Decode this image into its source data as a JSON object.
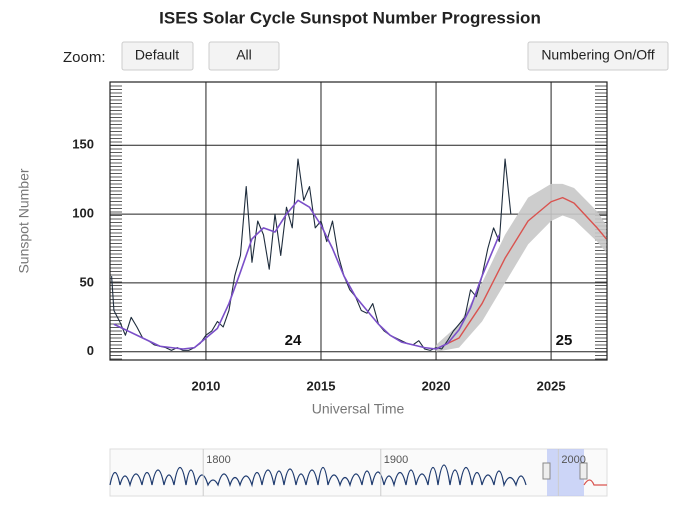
{
  "chart_data": {
    "type": "line",
    "title": "ISES Solar Cycle Sunspot Number Progression",
    "zoom_label": "Zoom:",
    "buttons": [
      "Default",
      "All",
      "Numbering On/Off"
    ],
    "y_label": "Sunspot Number",
    "x_label": "Universal Time",
    "annotations": [
      "24",
      "25"
    ],
    "xlim": [
      2005.83,
      2027.43
    ],
    "ylim": [
      -6,
      196
    ],
    "xticks": [
      2010,
      2015,
      2020,
      2025
    ],
    "yticks": [
      0,
      50,
      100,
      150
    ],
    "grid": true,
    "monthly": {
      "color": "#1f2d3d",
      "x": [
        2005.9,
        2006.0,
        2006.25,
        2006.5,
        2006.75,
        2007.0,
        2007.25,
        2007.5,
        2007.75,
        2008.0,
        2008.25,
        2008.5,
        2008.75,
        2009.0,
        2009.25,
        2009.5,
        2009.75,
        2010.0,
        2010.25,
        2010.5,
        2010.75,
        2011.0,
        2011.25,
        2011.5,
        2011.75,
        2012.0,
        2012.25,
        2012.5,
        2012.75,
        2013.0,
        2013.25,
        2013.5,
        2013.75,
        2014.0,
        2014.25,
        2014.5,
        2014.75,
        2015.0,
        2015.25,
        2015.5,
        2015.75,
        2016.0,
        2016.25,
        2016.5,
        2016.75,
        2017.0,
        2017.25,
        2017.5,
        2017.75,
        2018.0,
        2018.25,
        2018.5,
        2018.75,
        2019.0,
        2019.25,
        2019.5,
        2019.75,
        2020.0,
        2020.25,
        2020.5,
        2020.75,
        2021.0,
        2021.25,
        2021.5,
        2021.75,
        2022.0,
        2022.25,
        2022.5,
        2022.75,
        2023.0,
        2023.25
      ],
      "values": [
        55,
        30,
        22,
        12,
        25,
        18,
        10,
        8,
        5,
        4,
        3,
        1,
        3,
        1,
        1,
        3,
        6,
        12,
        15,
        22,
        18,
        30,
        55,
        70,
        120,
        65,
        95,
        85,
        60,
        100,
        70,
        105,
        90,
        140,
        110,
        120,
        90,
        95,
        80,
        95,
        70,
        55,
        45,
        40,
        30,
        28,
        35,
        20,
        15,
        12,
        10,
        8,
        6,
        5,
        8,
        2,
        1,
        3,
        2,
        8,
        15,
        20,
        25,
        45,
        40,
        55,
        75,
        90,
        80,
        140,
        100
      ]
    },
    "smoothed": {
      "color": "#7b4fc9",
      "x": [
        2006.0,
        2006.5,
        2007.0,
        2007.5,
        2008.0,
        2008.5,
        2009.0,
        2009.5,
        2010.0,
        2010.5,
        2011.0,
        2011.5,
        2012.0,
        2012.5,
        2013.0,
        2013.5,
        2014.0,
        2014.5,
        2015.0,
        2015.5,
        2016.0,
        2016.5,
        2017.0,
        2017.5,
        2018.0,
        2018.5,
        2019.0,
        2019.5,
        2020.0,
        2020.5,
        2021.0,
        2021.5,
        2022.0,
        2022.5,
        2022.75
      ],
      "values": [
        20,
        16,
        12,
        8,
        4,
        3,
        2,
        3,
        10,
        17,
        35,
        58,
        82,
        90,
        87,
        100,
        110,
        105,
        92,
        75,
        55,
        40,
        30,
        20,
        12,
        7,
        5,
        3,
        2,
        6,
        16,
        32,
        55,
        75,
        85
      ]
    },
    "predicted": {
      "color": "#d9534f",
      "x": [
        2020.0,
        2021.0,
        2022.0,
        2023.0,
        2024.0,
        2025.0,
        2025.5,
        2026.0,
        2027.0,
        2027.4
      ],
      "values": [
        2,
        10,
        35,
        68,
        95,
        109,
        112,
        108,
        90,
        82
      ]
    },
    "band": {
      "color": "#c8c8c8",
      "x": [
        2020.0,
        2021.0,
        2022.0,
        2023.0,
        2024.0,
        2025.0,
        2025.5,
        2026.0,
        2027.0,
        2027.4
      ],
      "lower": [
        0,
        3,
        22,
        50,
        78,
        95,
        99,
        96,
        80,
        72
      ],
      "upper": [
        5,
        20,
        50,
        85,
        112,
        122,
        122,
        119,
        102,
        92
      ]
    },
    "navigator": {
      "xlim": [
        1747.5,
        2027.4
      ],
      "xticks": [
        1800,
        1900,
        2000
      ]
    }
  }
}
